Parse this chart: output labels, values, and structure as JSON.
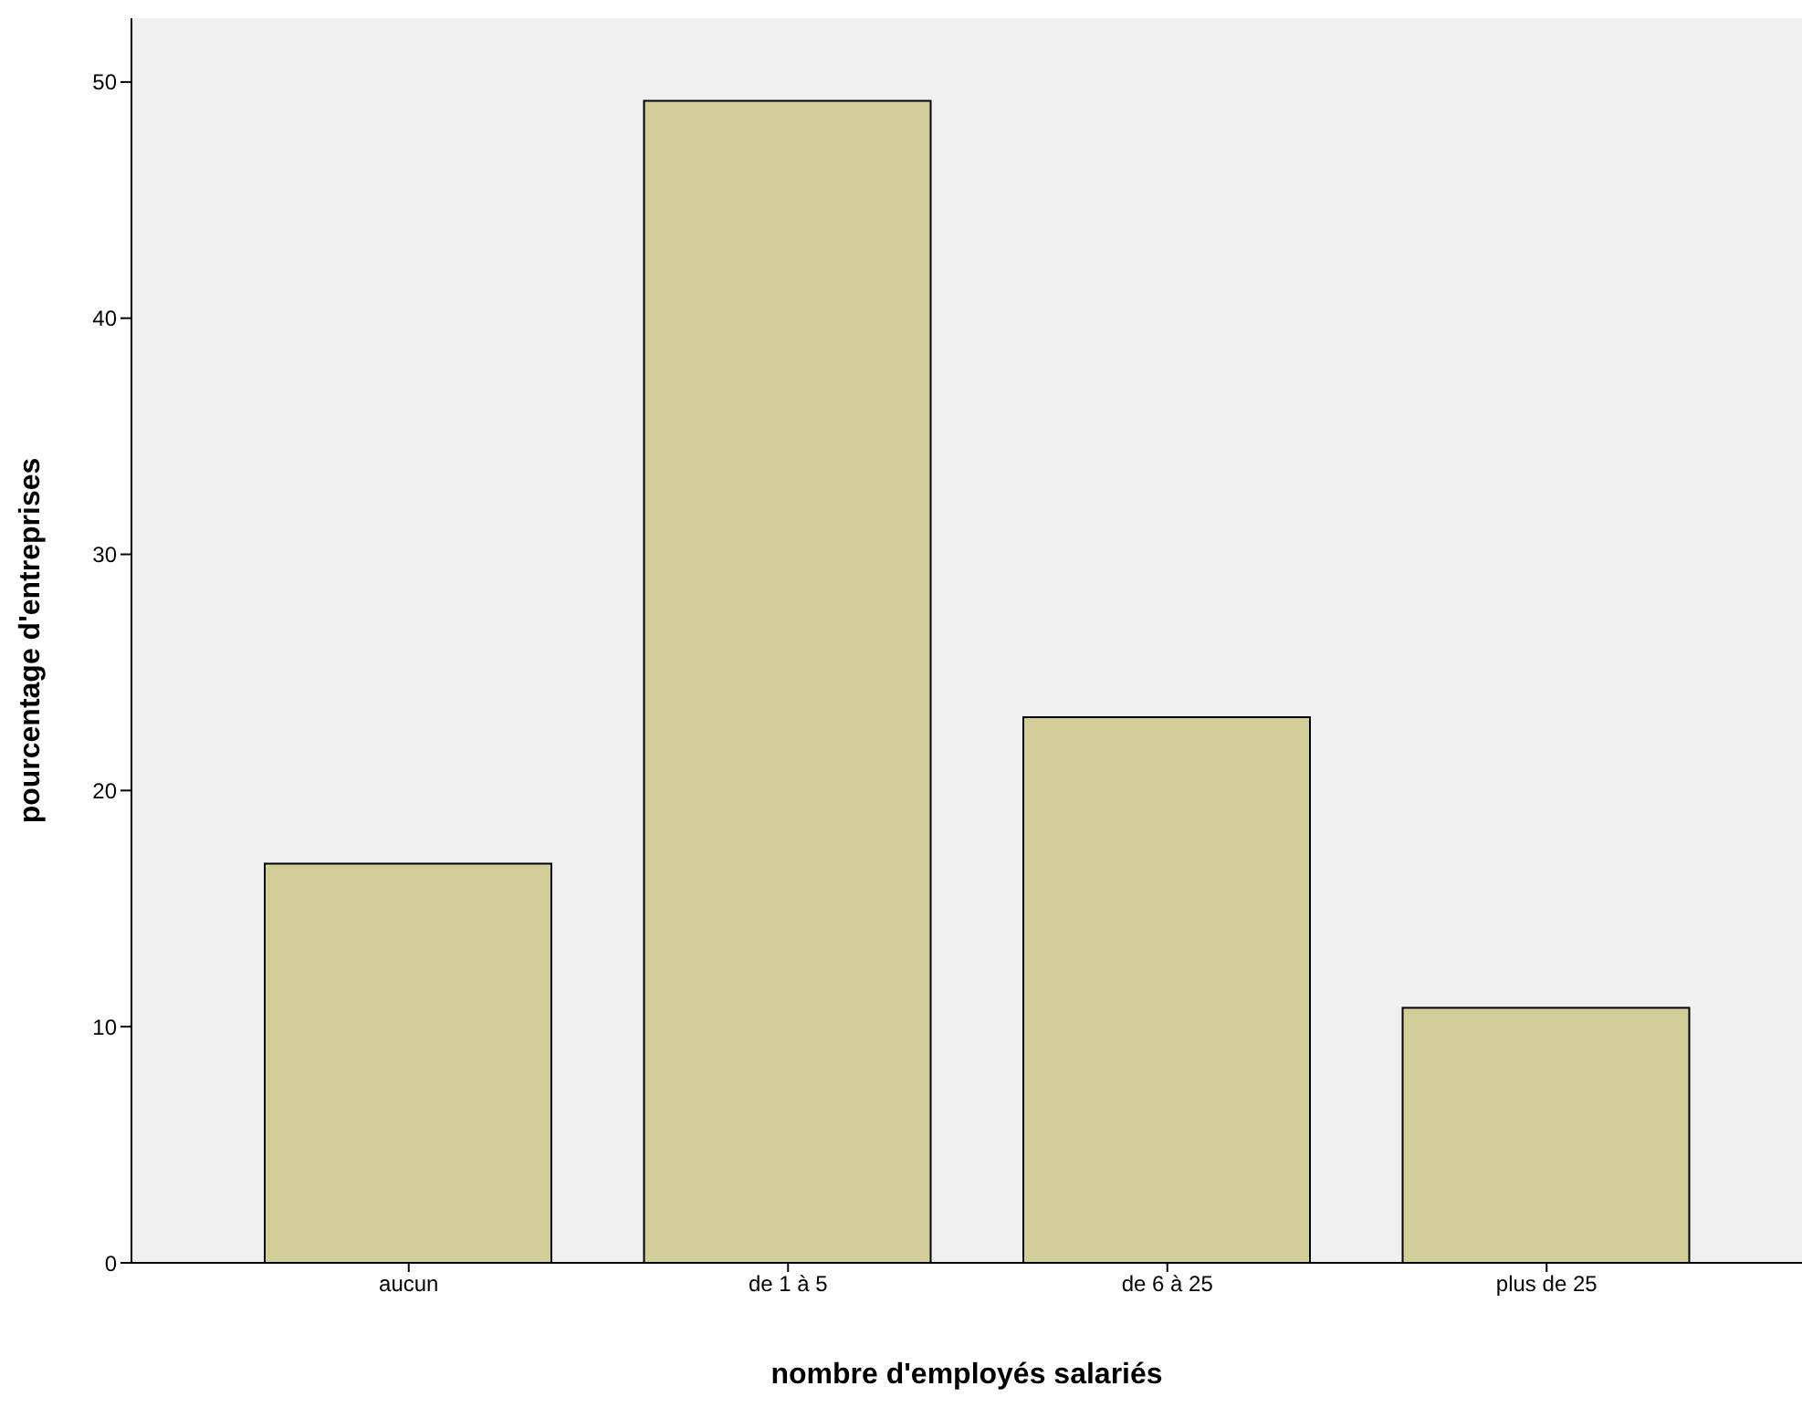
{
  "chart_data": {
    "type": "bar",
    "xlabel": "nombre d'employés salariés",
    "ylabel": "pourcentage d'entreprises",
    "categories": [
      "aucun",
      "de 1 à 5",
      "de 6 à 25",
      "plus de 25"
    ],
    "values": [
      16.9,
      49.2,
      23.1,
      10.8
    ],
    "color": "#d3ce97",
    "ylim": [
      0,
      52.7
    ],
    "yticks": [
      0,
      10,
      20,
      30,
      40,
      50
    ],
    "grid": false
  }
}
